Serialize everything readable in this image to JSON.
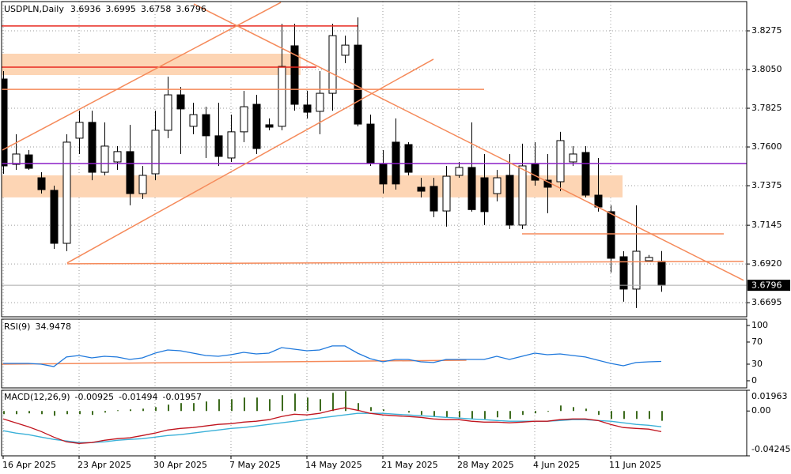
{
  "chart_data": [
    {
      "type": "candlestick",
      "title": "USDPLN,Daily",
      "categories": [
        "16 Apr 2025",
        null,
        null,
        null,
        null,
        null,
        "23 Apr 2025",
        null,
        null,
        null,
        null,
        null,
        "30 Apr 2025",
        null,
        null,
        null,
        null,
        null,
        "7 May 2025",
        null,
        null,
        null,
        null,
        null,
        "14 May 2025",
        null,
        null,
        null,
        null,
        null,
        "21 May 2025",
        null,
        null,
        null,
        null,
        null,
        "28 May 2025",
        null,
        null,
        null,
        null,
        null,
        "4 Jun 2025",
        null,
        null,
        null,
        null,
        null,
        "11 Jun 2025",
        null,
        null,
        null,
        null
      ],
      "open": [
        3.7995,
        3.7499,
        3.7554,
        3.7421,
        3.7348,
        3.704,
        3.7651,
        3.7743,
        3.7453,
        3.7513,
        3.7573,
        3.7329,
        3.7444,
        3.7697,
        3.7903,
        3.772,
        3.7788,
        3.7665,
        3.7536,
        3.7688,
        3.7848,
        3.7729,
        3.772,
        3.8188,
        3.7844,
        3.7807,
        3.7912,
        3.8133,
        3.8192,
        3.7733,
        3.7499,
        3.7628,
        3.7614,
        3.7366,
        3.7371,
        3.7228,
        3.7435,
        3.7481,
        3.7421,
        3.7329,
        3.7435,
        3.7146,
        3.7504,
        3.7407,
        3.7398,
        3.7513,
        3.7568,
        3.732,
        3.7224,
        3.6962,
        3.6774,
        3.6939,
        3.6936
      ],
      "high": [
        3.8041,
        3.7674,
        3.7582,
        3.7453,
        3.7375,
        3.7674,
        3.7811,
        3.7811,
        3.7743,
        3.7605,
        3.7729,
        3.749,
        3.7811,
        3.8009,
        3.7949,
        3.7857,
        3.7834,
        3.7857,
        3.7788,
        3.7926,
        3.7903,
        3.7766,
        3.8316,
        3.8316,
        3.7926,
        3.8041,
        3.8316,
        3.8247,
        3.8353,
        3.7788,
        3.7582,
        3.7766,
        3.7628,
        3.7421,
        3.7421,
        3.749,
        3.7513,
        3.7743,
        3.7559,
        3.7467,
        3.7559,
        3.7619,
        3.7628,
        3.7559,
        3.7688,
        3.7605,
        3.7605,
        3.7536,
        3.7261,
        3.6994,
        3.7261,
        3.6972,
        3.6995
      ],
      "low": [
        3.7444,
        3.7467,
        3.7467,
        3.7329,
        3.7008,
        3.6994,
        3.7559,
        3.7407,
        3.7435,
        3.7467,
        3.7261,
        3.7297,
        3.7407,
        3.7651,
        3.7559,
        3.7674,
        3.7536,
        3.749,
        3.7513,
        3.7628,
        3.7559,
        3.7697,
        3.7697,
        3.7811,
        3.7766,
        3.7674,
        3.7811,
        3.8087,
        3.772,
        3.749,
        3.7329,
        3.7352,
        3.7435,
        3.7307,
        3.7192,
        3.7137,
        3.7421,
        3.7224,
        3.7146,
        3.7284,
        3.7123,
        3.7123,
        3.7375,
        3.7215,
        3.7343,
        3.749,
        3.7307,
        3.7224,
        3.687,
        3.6701,
        3.6664,
        3.693,
        3.6758
      ],
      "close": [
        3.749,
        3.7559,
        3.7476,
        3.7352,
        3.704,
        3.7628,
        3.7743,
        3.7453,
        3.7605,
        3.7573,
        3.7329,
        3.7435,
        3.7697,
        3.7903,
        3.7821,
        3.7788,
        3.7665,
        3.7545,
        3.7688,
        3.7834,
        3.7591,
        3.7715,
        3.8068,
        3.7848,
        3.7802,
        3.7912,
        3.8247,
        3.8192,
        3.7733,
        3.7504,
        3.7385,
        3.7385,
        3.7453,
        3.7343,
        3.7228,
        3.743,
        3.7481,
        3.7236,
        3.7224,
        3.7421,
        3.7146,
        3.749,
        3.7407,
        3.7366,
        3.7637,
        3.7559,
        3.732,
        3.7251,
        3.6953,
        3.6774,
        3.6994,
        3.6958,
        3.6796
      ],
      "up_color": "#ffffff",
      "down_color": "#000000",
      "xlim": [
        -0.125,
        58.75
      ],
      "ylim": [
        3.6613,
        3.8445
      ],
      "yticks": [
        3.8275,
        {
          "value": 3.805,
          "label": "3.8050"
        },
        3.7825,
        {
          "value": 3.76,
          "label": "3.7600"
        },
        3.7375,
        3.7145,
        {
          "value": 3.692,
          "label": "3.6920"
        },
        3.6695
      ],
      "grid": true,
      "zones": [
        {
          "color": "#fdd5b4",
          "x": [
            -0.125,
            23.5
          ],
          "y": [
            3.8018,
            3.8142
          ]
        },
        {
          "color": "#fdd5b4",
          "x": [
            -0.125,
            48.94
          ],
          "y": [
            3.7307,
            3.7435
          ]
        }
      ],
      "lines": [
        {
          "color": "#e8281e",
          "x": [
            -0.125,
            28
          ],
          "y": [
            3.8303,
            3.8303
          ]
        },
        {
          "color": "#e8281e",
          "x": [
            -0.125,
            24.75
          ],
          "y": [
            3.8064,
            3.8064
          ]
        },
        {
          "color": "#f58a5a",
          "x": [
            -0.125,
            38
          ],
          "y": [
            3.7935,
            3.7935
          ]
        },
        {
          "color": "#8b1fc6",
          "x": [
            -0.125,
            58.75
          ],
          "y": [
            3.7504,
            3.7504
          ]
        },
        {
          "color": "#f58a5a",
          "x": [
            -0.06,
            21.94
          ],
          "y": [
            3.7582,
            3.844
          ]
        },
        {
          "color": "#f58a5a",
          "x": [
            5.06,
            34
          ],
          "y": [
            3.6926,
            3.811
          ]
        },
        {
          "color": "#f58a5a",
          "x": [
            15.06,
            58.5
          ],
          "y": [
            3.8431,
            3.6825
          ]
        },
        {
          "color": "#f58a5a",
          "x": [
            5.06,
            58.5
          ],
          "y": [
            3.6921,
            3.6935
          ]
        },
        {
          "color": "#f58a5a",
          "x": [
            41,
            56.94
          ],
          "y": [
            3.7095,
            3.7095
          ]
        }
      ]
    },
    {
      "type": "line",
      "title": "RSI(9)",
      "series": [
        {
          "color": "#1e78dc",
          "values": [
            31.4,
            31.4,
            31.4,
            30,
            25.7,
            42.9,
            45.7,
            41.4,
            44.3,
            42.9,
            38.6,
            41.4,
            50,
            55.7,
            54.3,
            50,
            45.7,
            44.3,
            47.1,
            51.4,
            48.6,
            50,
            60,
            57.1,
            54.3,
            55.7,
            62.9,
            62.9,
            50,
            40,
            34.3,
            38.6,
            38.6,
            34.3,
            32.9,
            38.6,
            38.6,
            38.6,
            38.6,
            44.3,
            38.6,
            44.3,
            50,
            47.1,
            48.6,
            45.7,
            42.9,
            37.1,
            31.4,
            27.1,
            32.9,
            34.3,
            34.9478
          ]
        }
      ],
      "ylim": [
        -12.9,
        111.4
      ],
      "yticks": [
        100,
        70,
        30,
        0
      ],
      "grid": false,
      "lines": [
        {
          "color": "#f58a5a",
          "x": [
            -0.125,
            36.6
          ],
          "y": [
            30,
            37.1
          ]
        }
      ]
    },
    {
      "type": "macd",
      "title": "MACD(12,26,9)",
      "series": [
        {
          "type": "bar",
          "color": "#3d6b1e",
          "values": [
            -0.003,
            -0.003,
            -0.0022,
            -0.003,
            -0.0045,
            -0.003,
            -0.003,
            -0.0037,
            -0.0015,
            0.0007,
            0.0015,
            0.0022,
            0.0037,
            0.006,
            0.0075,
            0.0075,
            0.009,
            0.0112,
            0.0112,
            0.0127,
            0.0127,
            0.0112,
            0.015,
            0.0165,
            0.0127,
            0.0112,
            0.0172,
            0.0187,
            0.0075,
            0.0037,
            0.0015,
            0.0,
            -0.0015,
            -0.0037,
            -0.0052,
            -0.006,
            -0.006,
            -0.0075,
            -0.0075,
            -0.006,
            -0.0075,
            -0.0037,
            -0.0022,
            -0.0007,
            0.0052,
            0.0037,
            0.0022,
            -0.0037,
            -0.0075,
            -0.0075,
            -0.0075,
            -0.0075,
            -0.00925
          ]
        },
        {
          "type": "line",
          "color": "#3ab0d8",
          "values": [
            -0.0187,
            -0.0209,
            -0.0224,
            -0.0247,
            -0.0269,
            -0.0284,
            -0.0299,
            -0.0299,
            -0.0292,
            -0.0277,
            -0.0269,
            -0.0262,
            -0.0247,
            -0.0232,
            -0.0224,
            -0.0209,
            -0.0194,
            -0.018,
            -0.0165,
            -0.0157,
            -0.0142,
            -0.0127,
            -0.0112,
            -0.0097,
            -0.0082,
            -0.0067,
            -0.0052,
            -0.0037,
            -0.0022,
            -0.0022,
            -0.0022,
            -0.003,
            -0.0037,
            -0.0045,
            -0.0052,
            -0.006,
            -0.0067,
            -0.0075,
            -0.0082,
            -0.009,
            -0.0097,
            -0.0097,
            -0.0097,
            -0.0097,
            -0.009,
            -0.0082,
            -0.0082,
            -0.009,
            -0.0097,
            -0.0112,
            -0.0127,
            -0.0135,
            -0.01494
          ]
        },
        {
          "type": "line",
          "color": "#c0141e",
          "values": [
            -0.0075,
            -0.0112,
            -0.015,
            -0.0194,
            -0.0247,
            -0.0292,
            -0.0307,
            -0.0299,
            -0.0277,
            -0.0262,
            -0.0254,
            -0.0232,
            -0.0209,
            -0.018,
            -0.0165,
            -0.0157,
            -0.0142,
            -0.0127,
            -0.012,
            -0.0105,
            -0.0097,
            -0.0082,
            -0.0052,
            -0.003,
            -0.0037,
            -0.0022,
            0.0007,
            0.003,
            0.0007,
            -0.0022,
            -0.0037,
            -0.0045,
            -0.0052,
            -0.006,
            -0.0075,
            -0.0082,
            -0.0082,
            -0.0097,
            -0.0105,
            -0.0105,
            -0.0112,
            -0.0105,
            -0.0097,
            -0.0097,
            -0.0082,
            -0.0075,
            -0.0075,
            -0.009,
            -0.0127,
            -0.0157,
            -0.0165,
            -0.0172,
            -0.01957
          ]
        }
      ],
      "ylim": [
        -0.04245,
        0.01963
      ],
      "yticks": [
        0.01963,
        {
          "value": 0,
          "label": "0.00"
        },
        -0.04245
      ],
      "grid": false
    }
  ]
}
